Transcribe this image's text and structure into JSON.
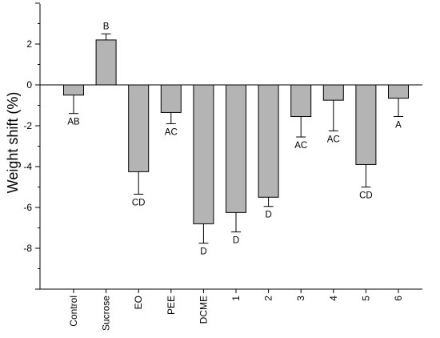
{
  "chart_data": {
    "type": "bar",
    "title": "",
    "xlabel": "",
    "ylabel": "Weight shift (%)",
    "ylim": [
      -10,
      4
    ],
    "yticks": [
      2,
      0,
      -2,
      -4,
      -6,
      -8
    ],
    "ytick_labels": [
      "2",
      "0",
      "-2",
      "-4",
      "-6",
      "-8"
    ],
    "grid": false,
    "legend": "none",
    "categories": [
      "Control",
      "Sucrose",
      "EO",
      "PEE",
      "DCME",
      "1",
      "2",
      "3",
      "4",
      "5",
      "6"
    ],
    "values": [
      -0.5,
      2.2,
      -4.25,
      -1.35,
      -6.8,
      -6.25,
      -5.5,
      -1.55,
      -0.75,
      -3.9,
      -0.65
    ],
    "error": [
      0.9,
      0.3,
      1.1,
      0.55,
      0.95,
      0.95,
      0.45,
      1.0,
      1.5,
      1.1,
      0.9
    ],
    "group_labels": [
      "AB",
      "B",
      "CD",
      "AC",
      "D",
      "D",
      "D",
      "AC",
      "AC",
      "CD",
      "A"
    ],
    "colors": {
      "bar_fill": "#b4b4b4",
      "bar_stroke": "#000000",
      "axis": "#000000"
    }
  }
}
